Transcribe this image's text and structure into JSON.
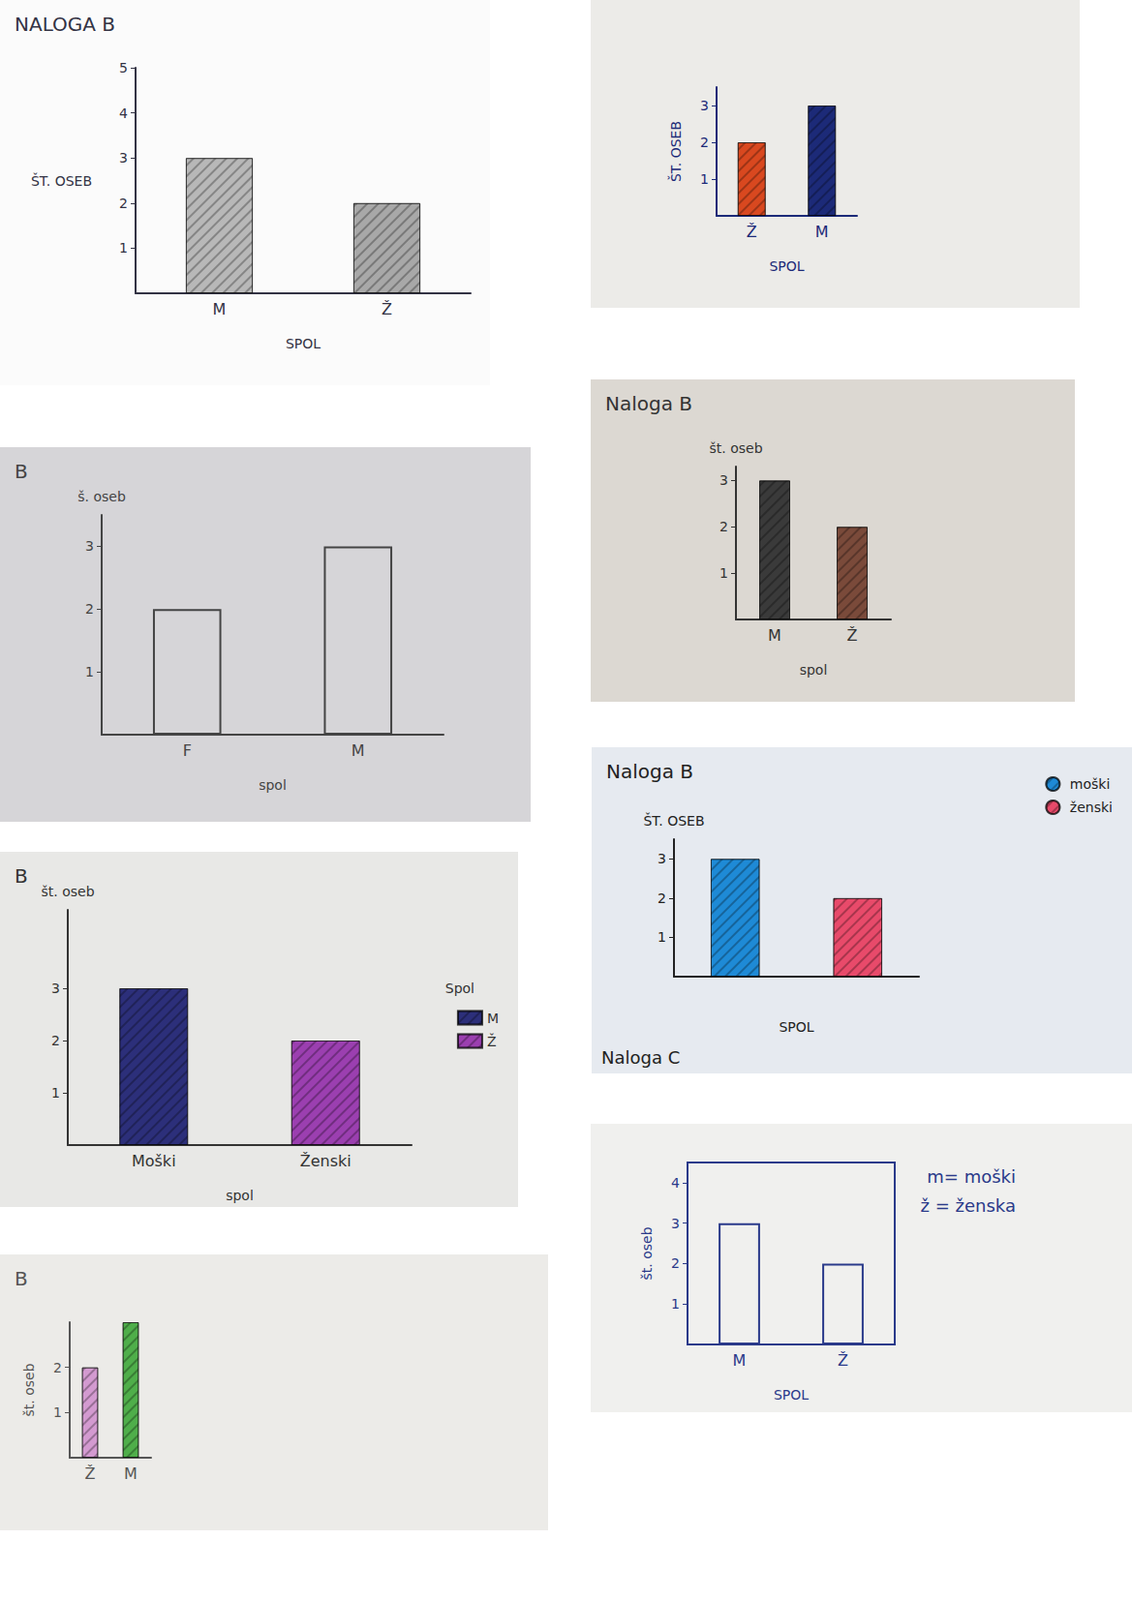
{
  "chart_data": [
    {
      "type": "bar",
      "title": "NALOGA B",
      "ylabel": "ŠT. OSEB",
      "xlabel": "SPOL",
      "categories": [
        "M",
        "Ž"
      ],
      "values": [
        3,
        2
      ],
      "colors": [
        "#b8b8b8",
        "#a8a8a8"
      ],
      "ylim": [
        0,
        5
      ],
      "yticks": [
        1,
        2,
        3,
        4,
        5
      ],
      "grid": false
    },
    {
      "type": "bar",
      "ylabel": "ŠT. OSEB",
      "xlabel": "SPOL",
      "categories": [
        "Ž",
        "M"
      ],
      "values": [
        2,
        3
      ],
      "colors": [
        "#d9481f",
        "#1c2a78"
      ],
      "ylim": [
        0,
        3.5
      ],
      "yticks": [
        1,
        2,
        3
      ],
      "grid": false
    },
    {
      "type": "bar",
      "title": "B",
      "ylabel": "š. oseb",
      "xlabel": "spol",
      "categories": [
        "F",
        "M"
      ],
      "values": [
        2,
        3
      ],
      "colors": [
        "transparent",
        "transparent"
      ],
      "ylim": [
        0,
        3.5
      ],
      "yticks": [
        1,
        2,
        3
      ],
      "grid": false
    },
    {
      "type": "bar",
      "title": "Naloga B",
      "ylabel": "št. oseb",
      "xlabel": "spol",
      "categories": [
        "M",
        "Ž"
      ],
      "values": [
        3,
        2
      ],
      "colors": [
        "#3a3a3a",
        "#7a4a3a"
      ],
      "ylim": [
        0,
        3.3
      ],
      "yticks": [
        1,
        2,
        3
      ],
      "grid": false
    },
    {
      "type": "bar",
      "title": "B",
      "ylabel": "št. oseb",
      "xlabel": "spol",
      "categories": [
        "Moški",
        "Ženski"
      ],
      "legend": "right",
      "legend_title": "Spol",
      "series": [
        {
          "name": "M",
          "color": "#2c2f7a",
          "values": [
            3,
            null
          ]
        },
        {
          "name": "Ž",
          "color": "#9b3fb0",
          "values": [
            null,
            2
          ]
        }
      ],
      "ylim": [
        0,
        4.5
      ],
      "yticks": [
        1,
        2,
        3
      ],
      "grid": false
    },
    {
      "type": "bar",
      "title": "Naloga B",
      "ylabel": "ŠT. OSEB",
      "xlabel": "SPOL",
      "categories": [
        null,
        null
      ],
      "legend": "upper right",
      "annotations": [
        "Naloga C"
      ],
      "series": [
        {
          "name": "moški",
          "color": "#1e8ad6",
          "values": [
            3,
            null
          ]
        },
        {
          "name": "ženski",
          "color": "#e84a6a",
          "values": [
            null,
            2
          ]
        }
      ],
      "ylim": [
        0,
        3.5
      ],
      "yticks": [
        1,
        2,
        3
      ],
      "grid": false
    },
    {
      "type": "bar",
      "title": "B",
      "ylabel": "št. oseb",
      "categories": [
        "Ž",
        "M"
      ],
      "values": [
        2,
        3
      ],
      "colors": [
        "#d39ad0",
        "#4fae4a"
      ],
      "ylim": [
        0,
        3
      ],
      "yticks": [
        1,
        2
      ],
      "grid": false
    },
    {
      "type": "bar",
      "ylabel": "št. oseb",
      "xlabel": "SPOL",
      "categories": [
        "M",
        "Ž"
      ],
      "values": [
        3,
        2
      ],
      "colors": [
        "transparent",
        "transparent"
      ],
      "annotations": [
        "m= moški",
        "ž = ženska"
      ],
      "ylim": [
        0,
        4.5
      ],
      "yticks": [
        1,
        2,
        3,
        4
      ],
      "grid": false
    }
  ]
}
